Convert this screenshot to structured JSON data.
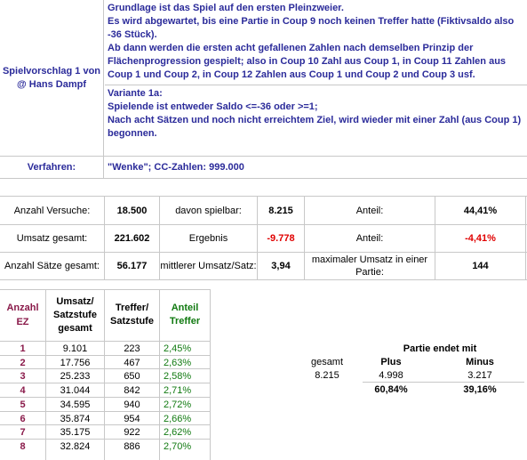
{
  "header": {
    "left_label": "Spielvorschlag 1 von @ Hans Dampf",
    "description_lines": [
      "Grundlage ist das Spiel auf den ersten Pleinzweier.",
      "Es wird abgewartet, bis eine Partie in Coup 9 noch keinen Treffer hatte (Fiktivsaldo also -36 Stück).",
      "Ab dann werden die ersten acht gefallenen Zahlen nach demselben Prinzip der Flächenprogression gespielt; also in Coup 10 Zahl aus Coup 1, in Coup 11 Zahlen aus Coup 1 und Coup 2, in Coup 12 Zahlen aus Coup 1 und Coup 2 und Coup 3 usf."
    ],
    "variant_lines": [
      "Variante 1a:",
      "Spielende ist entweder Saldo <=-36 oder >=1;",
      "Nach acht Sätzen und noch nicht erreichtem Ziel, wird wieder mit einer Zahl (aus Coup 1) begonnen."
    ]
  },
  "verfahren": {
    "label": "Verfahren:",
    "value": "\"Wenke\"; CC-Zahlen: 999.000"
  },
  "stats": {
    "anzahl_versuche_label": "Anzahl Versuche:",
    "anzahl_versuche": "18.500",
    "davon_spielbar_label": "davon spielbar:",
    "davon_spielbar": "8.215",
    "anteil_label_1": "Anteil:",
    "anteil_1": "44,41%",
    "umsatz_gesamt_label": "Umsatz gesamt:",
    "umsatz_gesamt": "221.602",
    "ergebnis_label": "Ergebnis",
    "ergebnis": "-9.778",
    "anteil_label_2": "Anteil:",
    "anteil_2": "-4,41%",
    "anzahl_saetze_label": "Anzahl Sätze gesamt:",
    "anzahl_saetze": "56.177",
    "mittlerer_umsatz_label": "mittlerer Umsatz/Satz:",
    "mittlerer_umsatz": "3,94",
    "max_umsatz_label": "maximaler Umsatz in einer Partie:",
    "max_umsatz": "144"
  },
  "table": {
    "headers": {
      "anzahl_ez": "Anzahl EZ",
      "umsatz": "Umsatz/ Satzstufe gesamt",
      "treffer": "Treffer/ Satzstufe",
      "anteil": "Anteil Treffer"
    },
    "rows": [
      {
        "ez": "1",
        "umsatz": "9.101",
        "treffer": "223",
        "anteil": "2,45%"
      },
      {
        "ez": "2",
        "umsatz": "17.756",
        "treffer": "467",
        "anteil": "2,63%"
      },
      {
        "ez": "3",
        "umsatz": "25.233",
        "treffer": "650",
        "anteil": "2,58%"
      },
      {
        "ez": "4",
        "umsatz": "31.044",
        "treffer": "842",
        "anteil": "2,71%"
      },
      {
        "ez": "5",
        "umsatz": "34.595",
        "treffer": "940",
        "anteil": "2,72%"
      },
      {
        "ez": "6",
        "umsatz": "35.874",
        "treffer": "954",
        "anteil": "2,66%"
      },
      {
        "ez": "7",
        "umsatz": "35.175",
        "treffer": "922",
        "anteil": "2,62%"
      },
      {
        "ez": "8",
        "umsatz": "32.824",
        "treffer": "886",
        "anteil": "2,70%"
      }
    ]
  },
  "partie": {
    "title": "Partie endet mit",
    "gesamt_label": "gesamt",
    "plus_label": "Plus",
    "minus_label": "Minus",
    "gesamt": "8.215",
    "plus": "4.998",
    "minus": "3.217",
    "plus_pct": "60,84%",
    "minus_pct": "39,16%"
  }
}
